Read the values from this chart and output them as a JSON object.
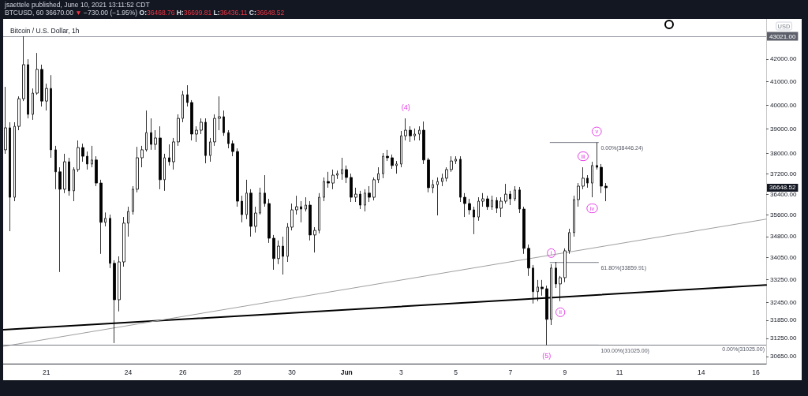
{
  "chart_data": {
    "type": "candlestick",
    "title": "Bitcoin / U.S. Dollar, 1h",
    "ylabel": "USD",
    "log": true,
    "color": "#000000",
    "xlim": [
      "2021-05-19T10:00",
      "2021-06-16T09:00"
    ],
    "xticks": [
      {
        "value": "2021-05-21",
        "label": "21"
      },
      {
        "value": "2021-05-24",
        "label": "24"
      },
      {
        "value": "2021-05-26",
        "label": "26"
      },
      {
        "value": "2021-05-28",
        "label": "28"
      },
      {
        "value": "2021-05-30",
        "label": "30"
      },
      {
        "value": "2021-06-01",
        "label": "Jun"
      },
      {
        "value": "2021-06-03",
        "label": "3"
      },
      {
        "value": "2021-06-05",
        "label": "5"
      },
      {
        "value": "2021-06-07",
        "label": "7"
      },
      {
        "value": "2021-06-09",
        "label": "9"
      },
      {
        "value": "2021-06-11",
        "label": "11"
      },
      {
        "value": "2021-06-14",
        "label": "14"
      },
      {
        "value": "2021-06-16",
        "label": "16"
      }
    ],
    "ylim": [
      30420,
      43820
    ],
    "yticks": [
      {
        "value": 30650,
        "label": "30650.00"
      },
      {
        "value": 31250,
        "label": "31250.00"
      },
      {
        "value": 31850,
        "label": "31850.00"
      },
      {
        "value": 32450,
        "label": "32450.00"
      },
      {
        "value": 33250,
        "label": "33250.00"
      },
      {
        "value": 34050,
        "label": "34050.00"
      },
      {
        "value": 34800,
        "label": "34800.00"
      },
      {
        "value": 35600,
        "label": "35600.00"
      },
      {
        "value": 36400,
        "label": "36400.00"
      },
      {
        "value": 37200,
        "label": "37200.00"
      },
      {
        "value": 38000,
        "label": "38000.00"
      },
      {
        "value": 39000,
        "label": "39000.00"
      },
      {
        "value": 40000,
        "label": "40000.00"
      },
      {
        "value": 41000,
        "label": "41000.00"
      },
      {
        "value": 42000,
        "label": "42000.00"
      }
    ],
    "x": [
      "2021-05-19T12:00",
      "2021-05-19T16:00",
      "2021-05-19T20:00",
      "2021-05-20T00:00",
      "2021-05-20T04:00",
      "2021-05-20T08:00",
      "2021-05-20T12:00",
      "2021-05-20T16:00",
      "2021-05-20T20:00",
      "2021-05-21T00:00",
      "2021-05-21T04:00",
      "2021-05-21T08:00",
      "2021-05-21T12:00",
      "2021-05-21T16:00",
      "2021-05-21T20:00",
      "2021-05-22T00:00",
      "2021-05-22T04:00",
      "2021-05-22T08:00",
      "2021-05-22T12:00",
      "2021-05-22T16:00",
      "2021-05-22T20:00",
      "2021-05-23T00:00",
      "2021-05-23T04:00",
      "2021-05-23T08:00",
      "2021-05-23T12:00",
      "2021-05-23T16:00",
      "2021-05-23T20:00",
      "2021-05-24T00:00",
      "2021-05-24T04:00",
      "2021-05-24T08:00",
      "2021-05-24T12:00",
      "2021-05-24T16:00",
      "2021-05-24T20:00",
      "2021-05-25T00:00",
      "2021-05-25T04:00",
      "2021-05-25T08:00",
      "2021-05-25T12:00",
      "2021-05-25T16:00",
      "2021-05-25T20:00",
      "2021-05-26T00:00",
      "2021-05-26T04:00",
      "2021-05-26T08:00",
      "2021-05-26T12:00",
      "2021-05-26T16:00",
      "2021-05-26T20:00",
      "2021-05-27T00:00",
      "2021-05-27T04:00",
      "2021-05-27T08:00",
      "2021-05-27T12:00",
      "2021-05-27T16:00",
      "2021-05-27T20:00",
      "2021-05-28T00:00",
      "2021-05-28T04:00",
      "2021-05-28T08:00",
      "2021-05-28T12:00",
      "2021-05-28T16:00",
      "2021-05-28T20:00",
      "2021-05-29T00:00",
      "2021-05-29T04:00",
      "2021-05-29T08:00",
      "2021-05-29T12:00",
      "2021-05-29T16:00",
      "2021-05-29T20:00",
      "2021-05-30T00:00",
      "2021-05-30T04:00",
      "2021-05-30T08:00",
      "2021-05-30T12:00",
      "2021-05-30T16:00",
      "2021-05-30T20:00",
      "2021-05-31T00:00",
      "2021-05-31T04:00",
      "2021-05-31T08:00",
      "2021-05-31T12:00",
      "2021-05-31T16:00",
      "2021-05-31T20:00",
      "2021-06-01T00:00",
      "2021-06-01T04:00",
      "2021-06-01T08:00",
      "2021-06-01T12:00",
      "2021-06-01T16:00",
      "2021-06-01T20:00",
      "2021-06-02T00:00",
      "2021-06-02T04:00",
      "2021-06-02T08:00",
      "2021-06-02T12:00",
      "2021-06-02T16:00",
      "2021-06-02T20:00",
      "2021-06-03T00:00",
      "2021-06-03T04:00",
      "2021-06-03T08:00",
      "2021-06-03T12:00",
      "2021-06-03T16:00",
      "2021-06-03T20:00",
      "2021-06-04T00:00",
      "2021-06-04T04:00",
      "2021-06-04T08:00",
      "2021-06-04T12:00",
      "2021-06-04T16:00",
      "2021-06-04T20:00",
      "2021-06-05T00:00",
      "2021-06-05T04:00",
      "2021-06-05T08:00",
      "2021-06-05T12:00",
      "2021-06-05T16:00",
      "2021-06-05T20:00",
      "2021-06-06T00:00",
      "2021-06-06T04:00",
      "2021-06-06T08:00",
      "2021-06-06T12:00",
      "2021-06-06T16:00",
      "2021-06-06T20:00",
      "2021-06-07T00:00",
      "2021-06-07T04:00",
      "2021-06-07T08:00",
      "2021-06-07T12:00",
      "2021-06-07T16:00",
      "2021-06-07T20:00",
      "2021-06-08T00:00",
      "2021-06-08T04:00",
      "2021-06-08T08:00",
      "2021-06-08T12:00",
      "2021-06-08T16:00",
      "2021-06-08T20:00",
      "2021-06-09T00:00",
      "2021-06-09T04:00",
      "2021-06-09T08:00",
      "2021-06-09T12:00",
      "2021-06-09T16:00",
      "2021-06-09T20:00",
      "2021-06-10T00:00",
      "2021-06-10T04:00",
      "2021-06-10T08:00",
      "2021-06-10T12:00"
    ],
    "ohlc": [
      [
        38150,
        40780,
        37990,
        39050
      ],
      [
        39050,
        39280,
        35000,
        36280
      ],
      [
        36280,
        39280,
        36130,
        39110
      ],
      [
        39110,
        40370,
        38950,
        40270
      ],
      [
        40270,
        43021,
        40170,
        41750
      ],
      [
        41750,
        41990,
        39440,
        39610
      ],
      [
        39610,
        40710,
        39380,
        40510
      ],
      [
        40510,
        42270,
        40440,
        41540
      ],
      [
        41540,
        41750,
        39940,
        40170
      ],
      [
        40170,
        40920,
        39770,
        40710
      ],
      [
        40710,
        41290,
        37830,
        38150
      ],
      [
        38150,
        38310,
        36590,
        37270
      ],
      [
        37270,
        37450,
        33520,
        36590
      ],
      [
        36590,
        37990,
        36440,
        37670
      ],
      [
        37670,
        37830,
        36340,
        36530
      ],
      [
        36530,
        37450,
        36130,
        37360
      ],
      [
        37360,
        38530,
        37270,
        38240
      ],
      [
        38240,
        38400,
        37670,
        37890
      ],
      [
        37890,
        38080,
        37360,
        37580
      ],
      [
        37580,
        38310,
        37450,
        37740
      ],
      [
        37740,
        37890,
        36710,
        36830
      ],
      [
        36830,
        36960,
        34170,
        35330
      ],
      [
        35330,
        35700,
        35180,
        35480
      ],
      [
        35480,
        35620,
        33660,
        33830
      ],
      [
        33830,
        33940,
        31090,
        32550
      ],
      [
        32550,
        34080,
        32150,
        33880
      ],
      [
        33880,
        35530,
        33710,
        35300
      ],
      [
        35300,
        35920,
        34800,
        35740
      ],
      [
        35740,
        36710,
        35620,
        36590
      ],
      [
        36590,
        38270,
        36470,
        37830
      ],
      [
        37830,
        38310,
        37450,
        38150
      ],
      [
        38150,
        39770,
        38080,
        38850
      ],
      [
        38850,
        39440,
        38150,
        38370
      ],
      [
        38370,
        38950,
        38150,
        38630
      ],
      [
        38630,
        39110,
        36590,
        36960
      ],
      [
        36960,
        37990,
        36530,
        37830
      ],
      [
        37830,
        38370,
        37520,
        37670
      ],
      [
        37670,
        38630,
        37360,
        38470
      ],
      [
        38470,
        39610,
        38310,
        39440
      ],
      [
        39440,
        40610,
        39280,
        40440
      ],
      [
        40440,
        40850,
        39940,
        40110
      ],
      [
        40110,
        40210,
        38530,
        38790
      ],
      [
        38790,
        39110,
        38470,
        38950
      ],
      [
        38950,
        39440,
        38790,
        39280
      ],
      [
        39280,
        39440,
        37610,
        37920
      ],
      [
        37920,
        38630,
        37670,
        38470
      ],
      [
        38470,
        39610,
        38310,
        39440
      ],
      [
        39440,
        40370,
        38950,
        39510
      ],
      [
        39510,
        39770,
        38720,
        38850
      ],
      [
        38850,
        38950,
        38210,
        38400
      ],
      [
        38400,
        38530,
        37890,
        38080
      ],
      [
        38080,
        38210,
        35920,
        36130
      ],
      [
        36130,
        36340,
        35330,
        35620
      ],
      [
        35620,
        36960,
        35450,
        36440
      ],
      [
        36440,
        36590,
        34800,
        35180
      ],
      [
        35180,
        35920,
        34950,
        35680
      ],
      [
        35680,
        36650,
        35620,
        36440
      ],
      [
        36440,
        37140,
        35920,
        36040
      ],
      [
        36040,
        36220,
        34570,
        34740
      ],
      [
        34740,
        34860,
        33600,
        34000
      ],
      [
        34000,
        34660,
        33800,
        34450
      ],
      [
        34450,
        34800,
        33430,
        34080
      ],
      [
        34080,
        35300,
        33880,
        35150
      ],
      [
        35150,
        36040,
        35030,
        35800
      ],
      [
        35800,
        36340,
        35620,
        35920
      ],
      [
        35920,
        36130,
        35330,
        35830
      ],
      [
        35830,
        36280,
        35740,
        35980
      ],
      [
        35980,
        36130,
        34660,
        34860
      ],
      [
        34860,
        35150,
        34220,
        35030
      ],
      [
        35030,
        36440,
        34920,
        36280
      ],
      [
        36280,
        37050,
        36130,
        36890
      ],
      [
        36890,
        37270,
        36650,
        36830
      ],
      [
        36830,
        37360,
        36590,
        37140
      ],
      [
        37140,
        37320,
        36990,
        37200
      ],
      [
        37200,
        37830,
        36960,
        37360
      ],
      [
        37360,
        37520,
        36830,
        37050
      ],
      [
        37050,
        37200,
        36100,
        36280
      ],
      [
        36280,
        36650,
        36100,
        36400
      ],
      [
        36400,
        36530,
        35830,
        35980
      ],
      [
        35980,
        36590,
        35740,
        36440
      ],
      [
        36440,
        36710,
        36100,
        36280
      ],
      [
        36280,
        37050,
        36160,
        36960
      ],
      [
        36960,
        37450,
        36830,
        37200
      ],
      [
        37200,
        38020,
        37020,
        37890
      ],
      [
        37890,
        38150,
        37700,
        37830
      ],
      [
        37830,
        37960,
        37390,
        37520
      ],
      [
        37520,
        37700,
        37200,
        37580
      ],
      [
        37580,
        38920,
        37450,
        38720
      ],
      [
        38720,
        39440,
        38530,
        38950
      ],
      [
        38950,
        39110,
        38470,
        38720
      ],
      [
        38720,
        39020,
        38530,
        38790
      ],
      [
        38790,
        39110,
        38530,
        38950
      ],
      [
        38950,
        39310,
        37580,
        37740
      ],
      [
        37740,
        37830,
        36470,
        36650
      ],
      [
        36650,
        36960,
        36440,
        36770
      ],
      [
        36770,
        37050,
        35590,
        36890
      ],
      [
        36890,
        37200,
        36710,
        37020
      ],
      [
        37020,
        37450,
        36890,
        37360
      ],
      [
        37360,
        37890,
        37270,
        37700
      ],
      [
        37700,
        37890,
        37580,
        37770
      ],
      [
        37770,
        37890,
        36100,
        36280
      ],
      [
        36280,
        36440,
        35530,
        36040
      ],
      [
        36040,
        36220,
        35620,
        35800
      ],
      [
        35800,
        35920,
        34890,
        35530
      ],
      [
        35530,
        36280,
        35390,
        36130
      ],
      [
        36130,
        36440,
        35920,
        36220
      ],
      [
        36220,
        36340,
        35800,
        35920
      ],
      [
        35920,
        36340,
        35800,
        36160
      ],
      [
        36160,
        36280,
        35680,
        35860
      ],
      [
        35860,
        36280,
        35530,
        36130
      ],
      [
        36130,
        36800,
        36040,
        36400
      ],
      [
        36400,
        36530,
        35980,
        36220
      ],
      [
        36220,
        36710,
        36130,
        36560
      ],
      [
        36560,
        36680,
        35680,
        35830
      ],
      [
        35830,
        35920,
        34170,
        34370
      ],
      [
        34370,
        34510,
        33380,
        33660
      ],
      [
        33660,
        33770,
        32420,
        32830
      ],
      [
        32830,
        33240,
        32500,
        32990
      ],
      [
        32990,
        33240,
        32690,
        32930
      ],
      [
        32930,
        33040,
        31025,
        31880
      ],
      [
        31880,
        33800,
        31690,
        33660
      ],
      [
        33660,
        33880,
        32960,
        33100
      ],
      [
        33100,
        33380,
        32500,
        33320
      ],
      [
        33320,
        34370,
        33160,
        34280
      ],
      [
        34280,
        35090,
        34170,
        34950
      ],
      [
        34950,
        36340,
        34800,
        36190
      ],
      [
        36190,
        36830,
        35920,
        36710
      ],
      [
        36710,
        37450,
        36590,
        37020
      ],
      [
        37020,
        37140,
        36650,
        36830
      ],
      [
        36830,
        37670,
        36280,
        37520
      ],
      [
        37520,
        38446.24,
        37360,
        37450
      ],
      [
        37450,
        37580,
        36440,
        36710
      ],
      [
        36710,
        36830,
        36130,
        36648.52
      ]
    ],
    "series": [
      {
        "type": "line",
        "color": "#000000",
        "x": [
          "2021-05-19T10:00",
          "2021-06-16T09:00"
        ],
        "values": [
          31530,
          33060
        ]
      },
      {
        "type": "line",
        "color": "#9e9e9e",
        "x": [
          "2021-05-19T10:00",
          "2021-06-16T09:00"
        ],
        "values": [
          30980,
          35450
        ]
      },
      {
        "type": "line",
        "name": "0.00%(38446.24)",
        "color": "#787b86",
        "x": [
          "2021-06-08T11:00",
          "2021-06-10T05:30"
        ],
        "values": [
          38446.24,
          38446.24
        ]
      },
      {
        "type": "line",
        "name": "61.80%(33859.91)",
        "color": "#787b86",
        "x": [
          "2021-06-08T11:00",
          "2021-06-10T05:30"
        ],
        "values": [
          33859.91,
          33859.91
        ]
      },
      {
        "type": "line",
        "name": "100.00%(31025.00)",
        "color": "#787b86",
        "x": [
          "2021-06-08T11:00",
          "2021-06-10T05:30"
        ],
        "values": [
          31025,
          31025
        ]
      }
    ],
    "ref_lines": [
      {
        "axis": "y",
        "value": 43021,
        "label": "43021.00",
        "color": "#9598a1"
      },
      {
        "axis": "y",
        "value": 31025,
        "label": "0.00%(31025.00)",
        "color": "#787b86"
      }
    ],
    "annotations": [
      "jsaettele published, June 10, 2021 13:11:52 CDT",
      "BTCUSD, 60 36670.00 ▼ −730.00 (−1.95%) O:36468.76 H:36699.81 L:36436.11 C:36648.52",
      "36648.52",
      {
        "text": "(4)",
        "x": "2021-06-03T04:00",
        "y": 39440
      },
      {
        "text": "(5)",
        "x": "2021-06-08T08:00",
        "y": 31025
      },
      {
        "text": "i",
        "x": "2021-06-08T12:00",
        "y": 33800
      },
      {
        "text": "ii",
        "x": "2021-06-08T20:00",
        "y": 32500
      },
      {
        "text": "iii",
        "x": "2021-06-09T16:00",
        "y": 37450
      },
      {
        "text": "iv",
        "x": "2021-06-10T00:00",
        "y": 36280
      },
      {
        "text": "v",
        "x": "2021-06-10T04:00",
        "y": 38446.24
      }
    ]
  }
}
